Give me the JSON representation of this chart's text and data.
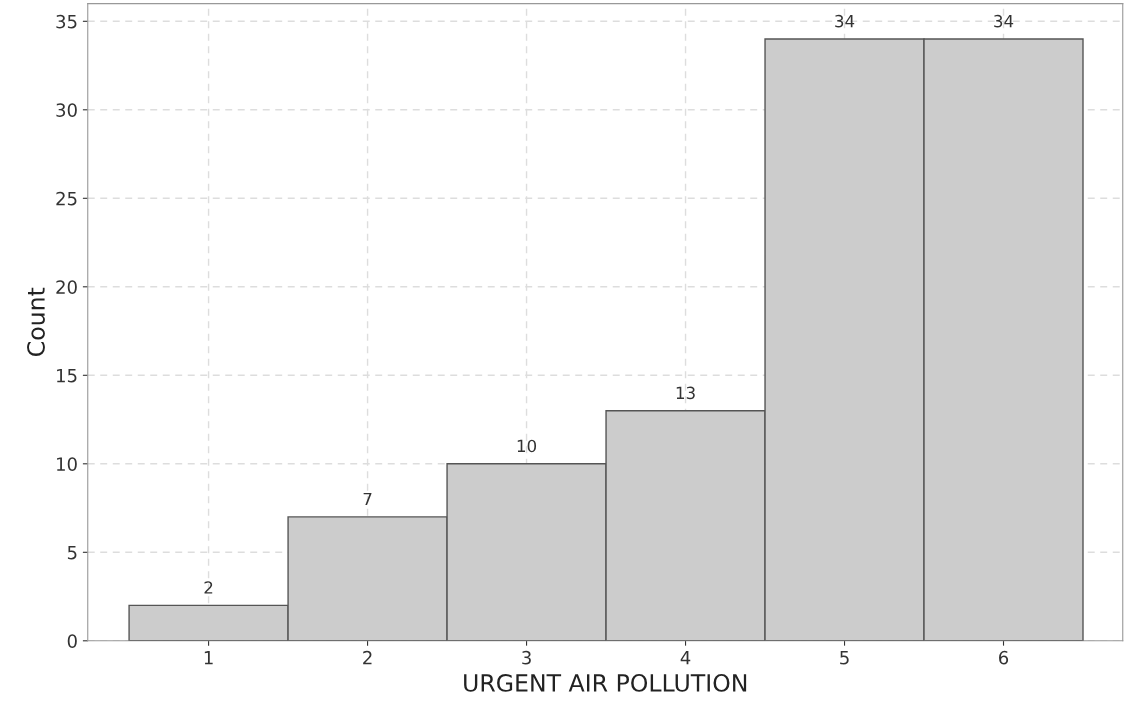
{
  "chart_data": {
    "type": "histogram",
    "xlabel": "URGENT AIR POLLUTION",
    "ylabel": "Count",
    "bins": [
      0.5,
      1.5,
      2.5,
      3.5,
      4.5,
      5.5,
      6.5
    ],
    "values": [
      2,
      7,
      10,
      13,
      34,
      34
    ],
    "color": "#cccccc",
    "xlim": [
      0.24,
      6.75
    ],
    "xticks": [
      1,
      2,
      3,
      4,
      5,
      6
    ],
    "ylim": [
      0,
      36
    ],
    "yticks": [
      0,
      5,
      10,
      15,
      20,
      25,
      30,
      35
    ],
    "grid": true,
    "data_labels": true
  }
}
